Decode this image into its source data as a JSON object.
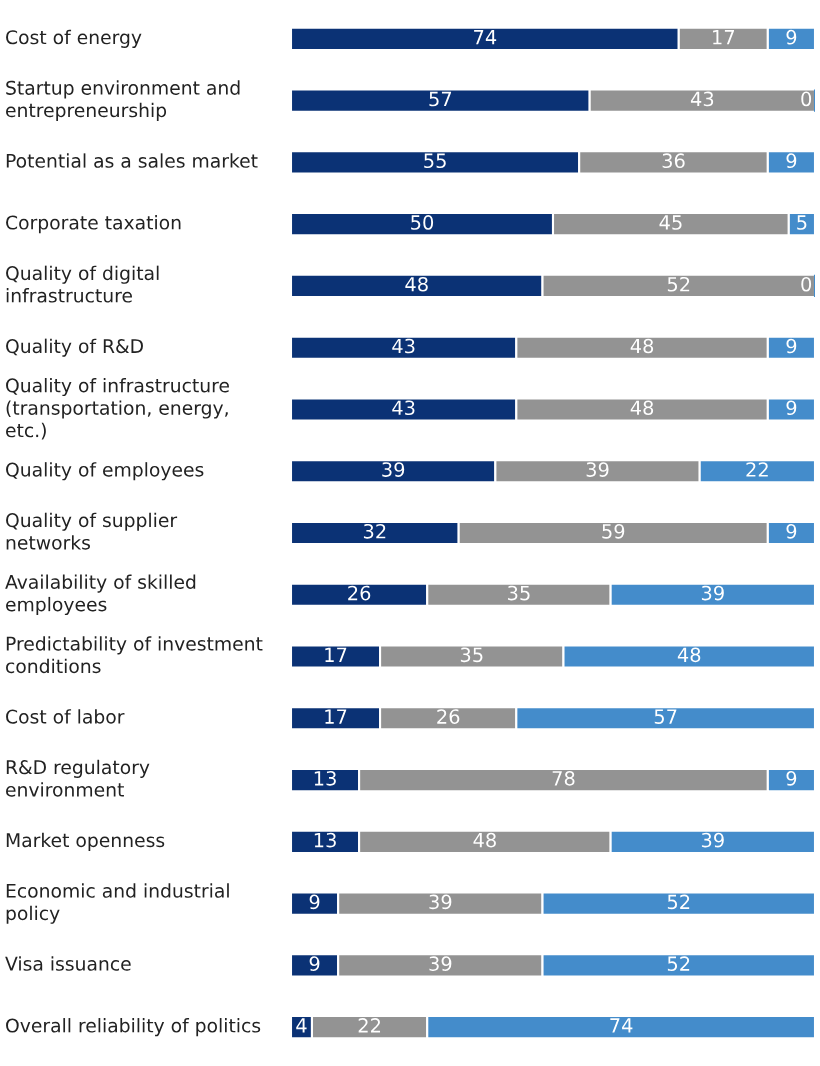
{
  "chart_data": {
    "type": "bar",
    "orientation": "horizontal",
    "stacked": true,
    "data_labels": true,
    "legend": false,
    "categories": [
      "Cost of energy",
      "Startup environment and\nentrepreneurship",
      "Potential as a sales market",
      "Corporate taxation",
      "Quality of digital\ninfrastructure",
      "Quality of R&D",
      "Quality of infrastructure\n(transportation, energy,\netc.)",
      "Quality of employees",
      "Quality of supplier\nnetworks",
      "Availability of skilled\nemployees",
      "Predictability of investment\nconditions",
      "Cost of labor",
      "R&D regulatory\nenvironment",
      "Market openness",
      "Economic and industrial\npolicy",
      "Visa issuance",
      "Overall reliability of politics"
    ],
    "series": [
      {
        "color": "#0b3275",
        "values": [
          74,
          57,
          55,
          50,
          48,
          43,
          43,
          39,
          32,
          26,
          17,
          17,
          13,
          13,
          9,
          9,
          4
        ]
      },
      {
        "color": "#939393",
        "values": [
          17,
          43,
          36,
          45,
          52,
          48,
          48,
          39,
          59,
          35,
          35,
          26,
          78,
          48,
          39,
          39,
          22
        ]
      },
      {
        "color": "#448ccb",
        "values": [
          9,
          0,
          9,
          5,
          0,
          9,
          9,
          22,
          9,
          39,
          48,
          57,
          9,
          39,
          52,
          52,
          74
        ]
      }
    ]
  }
}
